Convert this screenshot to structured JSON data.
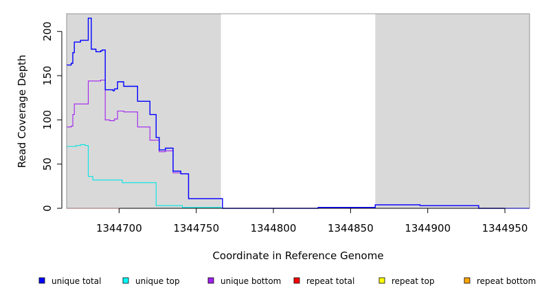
{
  "chart_data": {
    "type": "line",
    "xlabel": "Coordinate in Reference Genome",
    "ylabel": "Read Coverage Depth",
    "xlim": [
      1344666,
      1344966
    ],
    "ylim": [
      0,
      220
    ],
    "x_ticks": [
      1344700,
      1344750,
      1344800,
      1344850,
      1344900,
      1344950
    ],
    "y_ticks": [
      0,
      50,
      100,
      150,
      200
    ],
    "shaded_regions": [
      {
        "x0": 1344666,
        "x1": 1344766,
        "color": "#d9d9d9"
      },
      {
        "x0": 1344866,
        "x1": 1344966,
        "color": "#d9d9d9"
      }
    ],
    "series": [
      {
        "name": "unique total",
        "color": "#0000ff",
        "steps": [
          [
            1344666,
            162
          ],
          [
            1344669,
            164
          ],
          [
            1344670,
            176
          ],
          [
            1344671,
            188
          ],
          [
            1344674,
            188
          ],
          [
            1344675,
            190
          ],
          [
            1344679,
            190
          ],
          [
            1344680,
            215
          ],
          [
            1344682,
            180
          ],
          [
            1344685,
            177
          ],
          [
            1344688,
            178
          ],
          [
            1344689,
            179
          ],
          [
            1344691,
            134
          ],
          [
            1344696,
            133
          ],
          [
            1344697,
            135
          ],
          [
            1344699,
            143
          ],
          [
            1344703,
            138
          ],
          [
            1344711,
            138
          ],
          [
            1344712,
            121
          ],
          [
            1344720,
            106
          ],
          [
            1344724,
            80
          ],
          [
            1344726,
            66
          ],
          [
            1344730,
            68
          ],
          [
            1344735,
            42
          ],
          [
            1344740,
            39
          ],
          [
            1344745,
            11
          ],
          [
            1344746,
            11
          ],
          [
            1344767,
            0
          ],
          [
            1344829,
            1
          ],
          [
            1344866,
            4
          ],
          [
            1344895,
            3
          ],
          [
            1344933,
            0
          ],
          [
            1344966,
            0
          ]
        ]
      },
      {
        "name": "unique top",
        "color": "#00e5e5",
        "steps": [
          [
            1344666,
            70
          ],
          [
            1344672,
            71
          ],
          [
            1344675,
            72
          ],
          [
            1344678,
            71
          ],
          [
            1344680,
            36
          ],
          [
            1344683,
            32
          ],
          [
            1344702,
            29
          ],
          [
            1344718,
            29
          ],
          [
            1344724,
            3
          ],
          [
            1344741,
            1
          ],
          [
            1344766,
            0
          ],
          [
            1344966,
            0
          ]
        ]
      },
      {
        "name": "unique bottom",
        "color": "#a020f0",
        "steps": [
          [
            1344666,
            92
          ],
          [
            1344669,
            93
          ],
          [
            1344670,
            106
          ],
          [
            1344671,
            118
          ],
          [
            1344674,
            118
          ],
          [
            1344678,
            118
          ],
          [
            1344680,
            144
          ],
          [
            1344688,
            145
          ],
          [
            1344691,
            100
          ],
          [
            1344694,
            99
          ],
          [
            1344697,
            101
          ],
          [
            1344699,
            110
          ],
          [
            1344703,
            109
          ],
          [
            1344711,
            109
          ],
          [
            1344712,
            92
          ],
          [
            1344720,
            77
          ],
          [
            1344724,
            77
          ],
          [
            1344726,
            64
          ],
          [
            1344730,
            65
          ],
          [
            1344735,
            40
          ],
          [
            1344740,
            39
          ],
          [
            1344745,
            11
          ],
          [
            1344746,
            11
          ],
          [
            1344767,
            0
          ],
          [
            1344829,
            1
          ],
          [
            1344866,
            4
          ],
          [
            1344895,
            3
          ],
          [
            1344933,
            0
          ],
          [
            1344966,
            0
          ]
        ]
      },
      {
        "name": "repeat total",
        "color": "#ff0000",
        "steps": [
          [
            1344666,
            0
          ],
          [
            1344966,
            0
          ]
        ]
      },
      {
        "name": "repeat top",
        "color": "#ffff00",
        "steps": [
          [
            1344666,
            0
          ],
          [
            1344966,
            0
          ]
        ]
      },
      {
        "name": "repeat bottom",
        "color": "#ffa500",
        "steps": [
          [
            1344666,
            0
          ],
          [
            1344966,
            0
          ]
        ]
      }
    ],
    "legend": {
      "placement": "bottom",
      "entries": [
        {
          "label": "unique total",
          "color": "#0000ff"
        },
        {
          "label": "unique top",
          "color": "#00ffff"
        },
        {
          "label": "unique bottom",
          "color": "#a020f0"
        },
        {
          "label": "repeat total",
          "color": "#ff0000"
        },
        {
          "label": "repeat top",
          "color": "#ffff00"
        },
        {
          "label": "repeat bottom",
          "color": "#ffa500"
        }
      ]
    }
  }
}
